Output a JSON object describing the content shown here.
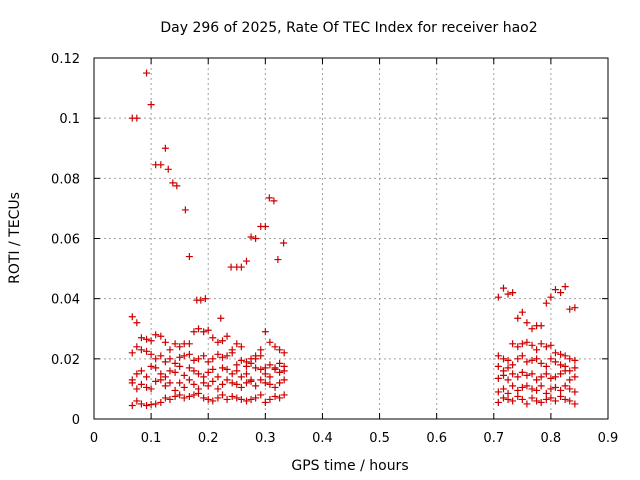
{
  "chart_data": {
    "type": "scatter",
    "title": "Day 296 of 2025, Rate Of TEC Index for receiver hao2",
    "xlabel": "GPS time / hours",
    "ylabel": "ROTI / TECUs",
    "xlim": [
      0,
      0.9
    ],
    "ylim": [
      0,
      0.12
    ],
    "xticks": [
      "0",
      "0.1",
      "0.2",
      "0.3",
      "0.4",
      "0.5",
      "0.6",
      "0.7",
      "0.8",
      "0.9"
    ],
    "yticks": [
      "0",
      "0.02",
      "0.04",
      "0.06",
      "0.08",
      "0.1",
      "0.12"
    ],
    "grid": true,
    "marker": "plus",
    "color": "#cc0000",
    "series": [
      {
        "x": [
          0.067,
          0.075,
          0.092,
          0.1,
          0.108,
          0.117,
          0.125,
          0.13,
          0.138,
          0.145,
          0.16,
          0.167,
          0.18,
          0.187,
          0.195,
          0.222,
          0.24,
          0.25,
          0.258,
          0.267,
          0.275,
          0.283,
          0.292,
          0.3,
          0.307,
          0.315,
          0.322,
          0.332,
          0.067,
          0.075,
          0.083,
          0.092,
          0.1,
          0.108,
          0.117,
          0.125,
          0.133,
          0.142,
          0.15,
          0.158,
          0.167,
          0.175,
          0.183,
          0.192,
          0.2,
          0.208,
          0.217,
          0.225,
          0.233,
          0.242,
          0.25,
          0.258,
          0.267,
          0.275,
          0.283,
          0.292,
          0.3,
          0.308,
          0.317,
          0.325,
          0.333,
          0.067,
          0.075,
          0.083,
          0.092,
          0.1,
          0.108,
          0.117,
          0.125,
          0.133,
          0.142,
          0.15,
          0.158,
          0.167,
          0.175,
          0.183,
          0.192,
          0.2,
          0.208,
          0.217,
          0.225,
          0.233,
          0.242,
          0.25,
          0.258,
          0.267,
          0.275,
          0.283,
          0.292,
          0.3,
          0.308,
          0.317,
          0.325,
          0.333,
          0.067,
          0.075,
          0.083,
          0.092,
          0.1,
          0.108,
          0.117,
          0.125,
          0.133,
          0.142,
          0.15,
          0.158,
          0.167,
          0.175,
          0.183,
          0.192,
          0.2,
          0.208,
          0.217,
          0.225,
          0.233,
          0.242,
          0.25,
          0.258,
          0.267,
          0.275,
          0.283,
          0.292,
          0.3,
          0.308,
          0.317,
          0.325,
          0.333,
          0.067,
          0.075,
          0.083,
          0.092,
          0.1,
          0.108,
          0.117,
          0.125,
          0.133,
          0.142,
          0.15,
          0.158,
          0.167,
          0.175,
          0.183,
          0.192,
          0.2,
          0.208,
          0.217,
          0.225,
          0.233,
          0.242,
          0.25,
          0.258,
          0.267,
          0.275,
          0.283,
          0.292,
          0.3,
          0.308,
          0.317,
          0.325,
          0.333,
          0.067,
          0.075,
          0.083,
          0.092,
          0.1,
          0.108,
          0.117,
          0.125,
          0.133,
          0.142,
          0.15,
          0.158,
          0.167,
          0.175,
          0.183,
          0.192,
          0.2,
          0.208,
          0.217,
          0.225,
          0.233,
          0.242,
          0.25,
          0.258,
          0.267,
          0.275,
          0.283,
          0.292,
          0.3,
          0.308,
          0.317,
          0.325,
          0.333,
          0.708,
          0.717,
          0.725,
          0.733,
          0.742,
          0.75,
          0.758,
          0.767,
          0.775,
          0.783,
          0.792,
          0.8,
          0.808,
          0.817,
          0.825,
          0.833,
          0.842,
          0.708,
          0.717,
          0.725,
          0.733,
          0.742,
          0.75,
          0.758,
          0.767,
          0.775,
          0.783,
          0.792,
          0.8,
          0.808,
          0.817,
          0.825,
          0.833,
          0.842,
          0.708,
          0.717,
          0.725,
          0.733,
          0.742,
          0.75,
          0.758,
          0.767,
          0.775,
          0.783,
          0.792,
          0.8,
          0.808,
          0.817,
          0.825,
          0.833,
          0.842,
          0.708,
          0.717,
          0.725,
          0.733,
          0.742,
          0.75,
          0.758,
          0.767,
          0.775,
          0.783,
          0.792,
          0.8,
          0.808,
          0.817,
          0.825,
          0.833,
          0.842,
          0.708,
          0.717,
          0.725,
          0.733,
          0.742,
          0.75,
          0.758,
          0.767,
          0.775,
          0.783,
          0.792,
          0.8,
          0.808,
          0.817,
          0.825,
          0.833,
          0.842,
          0.708,
          0.717,
          0.725,
          0.733,
          0.742,
          0.75,
          0.758,
          0.767,
          0.775,
          0.783,
          0.792,
          0.8,
          0.808,
          0.817,
          0.825,
          0.833,
          0.842
        ],
        "y": [
          0.1,
          0.1,
          0.115,
          0.1045,
          0.0845,
          0.0845,
          0.09,
          0.083,
          0.0785,
          0.0775,
          0.0695,
          0.054,
          0.0395,
          0.0395,
          0.04,
          0.0335,
          0.0505,
          0.0505,
          0.0505,
          0.0525,
          0.0605,
          0.06,
          0.064,
          0.064,
          0.0735,
          0.0725,
          0.053,
          0.0585,
          0.034,
          0.032,
          0.027,
          0.0265,
          0.026,
          0.028,
          0.0275,
          0.0255,
          0.023,
          0.025,
          0.024,
          0.025,
          0.025,
          0.029,
          0.03,
          0.029,
          0.0295,
          0.027,
          0.0255,
          0.026,
          0.0275,
          0.023,
          0.025,
          0.024,
          0.019,
          0.02,
          0.021,
          0.023,
          0.029,
          0.0255,
          0.024,
          0.023,
          0.022,
          0.022,
          0.024,
          0.023,
          0.0225,
          0.0215,
          0.02,
          0.021,
          0.019,
          0.02,
          0.0185,
          0.0205,
          0.021,
          0.0215,
          0.0195,
          0.02,
          0.021,
          0.019,
          0.02,
          0.0215,
          0.0205,
          0.021,
          0.022,
          0.018,
          0.0195,
          0.0175,
          0.0185,
          0.02,
          0.021,
          0.017,
          0.018,
          0.0165,
          0.0185,
          0.0175,
          0.013,
          0.015,
          0.016,
          0.014,
          0.0175,
          0.017,
          0.015,
          0.014,
          0.016,
          0.0155,
          0.0175,
          0.0145,
          0.017,
          0.016,
          0.015,
          0.014,
          0.0155,
          0.0165,
          0.014,
          0.017,
          0.0165,
          0.015,
          0.016,
          0.014,
          0.015,
          0.013,
          0.017,
          0.0165,
          0.015,
          0.014,
          0.017,
          0.0155,
          0.016,
          0.012,
          0.01,
          0.0115,
          0.0105,
          0.01,
          0.0125,
          0.013,
          0.011,
          0.012,
          0.0095,
          0.012,
          0.0105,
          0.013,
          0.0115,
          0.01,
          0.012,
          0.011,
          0.0125,
          0.01,
          0.0115,
          0.013,
          0.012,
          0.0115,
          0.0105,
          0.012,
          0.0125,
          0.011,
          0.013,
          0.012,
          0.0115,
          0.0105,
          0.012,
          0.013,
          0.0045,
          0.006,
          0.005,
          0.0045,
          0.0048,
          0.005,
          0.0055,
          0.007,
          0.0065,
          0.0075,
          0.008,
          0.007,
          0.0075,
          0.008,
          0.0085,
          0.007,
          0.0065,
          0.006,
          0.007,
          0.008,
          0.0065,
          0.0075,
          0.007,
          0.0065,
          0.006,
          0.0065,
          0.007,
          0.008,
          0.0055,
          0.0065,
          0.0075,
          0.007,
          0.008,
          0.0405,
          0.0435,
          0.0415,
          0.042,
          0.0335,
          0.0355,
          0.032,
          0.03,
          0.031,
          0.031,
          0.0385,
          0.0405,
          0.043,
          0.042,
          0.044,
          0.0365,
          0.037,
          0.021,
          0.02,
          0.0195,
          0.025,
          0.024,
          0.025,
          0.0255,
          0.0245,
          0.023,
          0.025,
          0.024,
          0.0245,
          0.022,
          0.0215,
          0.021,
          0.02,
          0.0195,
          0.0175,
          0.016,
          0.017,
          0.018,
          0.02,
          0.021,
          0.019,
          0.0195,
          0.02,
          0.0185,
          0.0175,
          0.02,
          0.019,
          0.018,
          0.0175,
          0.016,
          0.017,
          0.0135,
          0.0145,
          0.013,
          0.015,
          0.014,
          0.0155,
          0.0145,
          0.015,
          0.013,
          0.014,
          0.015,
          0.0135,
          0.014,
          0.015,
          0.016,
          0.013,
          0.014,
          0.009,
          0.01,
          0.0085,
          0.011,
          0.0095,
          0.0105,
          0.011,
          0.01,
          0.0095,
          0.011,
          0.0085,
          0.01,
          0.0105,
          0.0095,
          0.011,
          0.01,
          0.009,
          0.0055,
          0.007,
          0.0065,
          0.006,
          0.0075,
          0.0065,
          0.005,
          0.007,
          0.006,
          0.0055,
          0.0065,
          0.007,
          0.006,
          0.0075,
          0.0065,
          0.006,
          0.005
        ]
      }
    ]
  }
}
